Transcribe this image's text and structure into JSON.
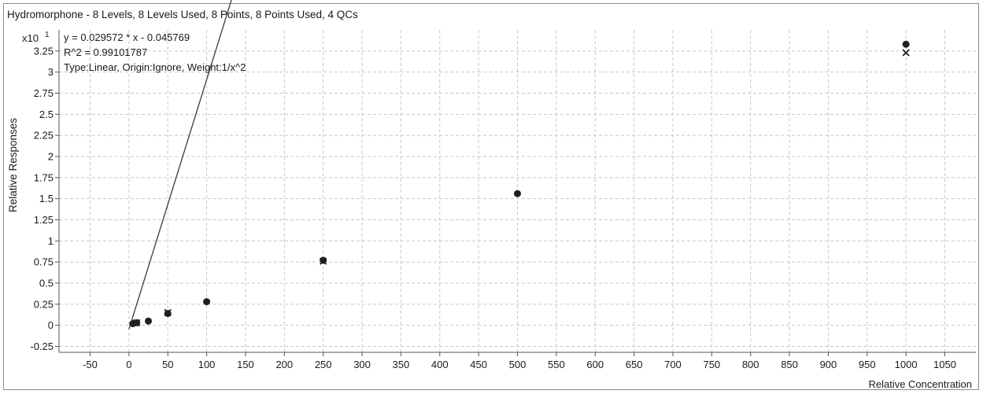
{
  "chart_data": {
    "type": "scatter",
    "title": "Hydromorphone - 8 Levels, 8 Levels Used, 8 Points, 8 Points Used, 4 QCs",
    "xlabel": "Relative Concentration",
    "ylabel": "Relative Responses",
    "y_multiplier": "x10",
    "y_exponent": "1",
    "xlim": [
      -90,
      1090
    ],
    "ylim": [
      -0.32,
      3.5
    ],
    "x_ticks": [
      -50,
      0,
      50,
      100,
      150,
      200,
      250,
      300,
      350,
      400,
      450,
      500,
      550,
      600,
      650,
      700,
      750,
      800,
      850,
      900,
      950,
      1000,
      1050
    ],
    "y_ticks": [
      -0.25,
      0,
      0.25,
      0.5,
      0.75,
      1,
      1.25,
      1.5,
      1.75,
      2,
      2.25,
      2.5,
      2.75,
      3,
      3.25
    ],
    "grid": true,
    "annotations": [
      "y = 0.029572 * x  - 0.045769",
      "R^2 = 0.99101787",
      "Type:Linear, Origin:Ignore, Weight:1/x^2"
    ],
    "fit": {
      "slope": 0.029572,
      "intercept": -0.045769
    },
    "series": [
      {
        "values": [
          [
            5,
            0.02
          ],
          [
            10,
            0.03
          ],
          [
            25,
            0.05
          ],
          [
            50,
            0.14
          ],
          [
            100,
            0.28
          ],
          [
            250,
            0.77
          ],
          [
            500,
            1.56
          ],
          [
            1000,
            3.33
          ]
        ]
      }
    ],
    "qc_points": [
      [
        10,
        0.03
      ],
      [
        50,
        0.15
      ],
      [
        250,
        0.76
      ],
      [
        1000,
        3.23
      ]
    ],
    "colors": {
      "line": "#3a3a3a",
      "point": "#1f1f1f",
      "grid": "#c8c8c8",
      "axis": "#555555"
    }
  }
}
